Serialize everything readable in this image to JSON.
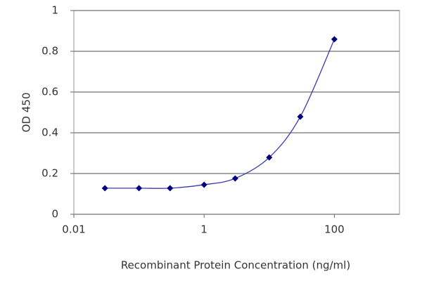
{
  "chart_data": {
    "type": "line",
    "xlabel": "Recombinant Protein Concentration (ng/ml)",
    "ylabel": "OD 450",
    "x": [
      0.03,
      0.1,
      0.3,
      1,
      3,
      10,
      30,
      100
    ],
    "series": [
      {
        "color": "#000080",
        "values": [
          0.128,
          0.128,
          0.128,
          0.145,
          0.176,
          0.279,
          0.479,
          0.859
        ]
      }
    ],
    "xscale": "log",
    "xlim": [
      0.01,
      1000
    ],
    "xticks": [
      0.01,
      1,
      100
    ],
    "ylim": [
      0,
      1
    ],
    "yticks": [
      0,
      0.2,
      0.4,
      0.6,
      0.8,
      1
    ],
    "grid": true
  }
}
